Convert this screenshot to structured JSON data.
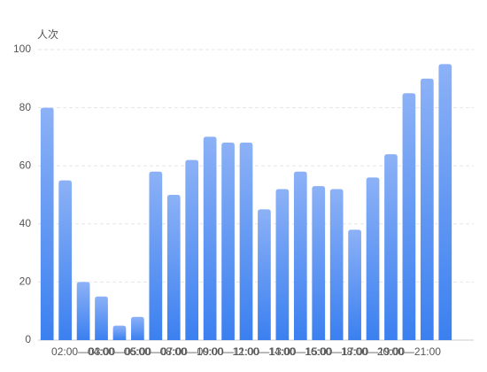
{
  "chart_data": {
    "type": "bar",
    "y_label": "人次",
    "categories": [
      null,
      null,
      "02:00—03:00",
      null,
      "04:00—05:00",
      null,
      "06:00—07:00",
      null,
      "08:00—09:00",
      null,
      "10:00—11:00",
      null,
      "12:00—13:00",
      null,
      "14:00—15:00",
      null,
      "16:00—17:00",
      null,
      "18:00—19:00",
      null,
      "20:00—21:00",
      null,
      null
    ],
    "values": [
      80,
      55,
      20,
      15,
      5,
      8,
      58,
      50,
      62,
      70,
      68,
      68,
      45,
      52,
      58,
      53,
      52,
      38,
      56,
      64,
      85,
      90,
      95
    ],
    "color": "#3b80f0",
    "color_top": "#8cb1f6",
    "ylim": [
      0,
      100
    ],
    "yticks": [
      0,
      20,
      40,
      60,
      80,
      100
    ],
    "grid": true
  }
}
